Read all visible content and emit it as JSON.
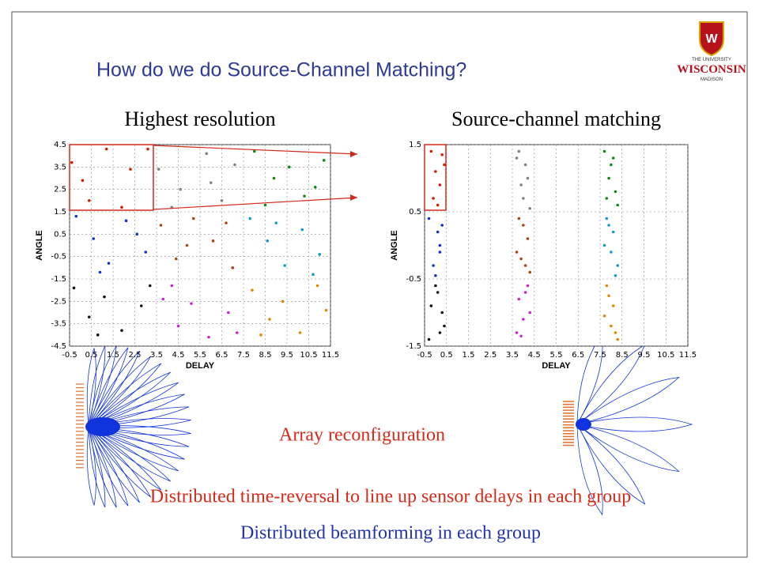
{
  "title": "How do we do Source-Channel Matching?",
  "logo": {
    "line1": "THE UNIVERSITY",
    "line2": "WISCONSIN",
    "line3": "MADISON"
  },
  "chart_data": [
    {
      "type": "scatter",
      "title": "Highest resolution",
      "xlabel": "DELAY",
      "ylabel": "ANGLE",
      "xlim": [
        -0.5,
        11.5
      ],
      "ylim": [
        -4.5,
        4.5
      ],
      "xticks": [
        -0.5,
        0.5,
        1.5,
        2.5,
        3.5,
        4.5,
        5.5,
        6.5,
        7.5,
        8.5,
        9.5,
        10.5,
        11.5
      ],
      "yticks": [
        -4.5,
        -3.5,
        -2.5,
        -1.5,
        -0.5,
        0.5,
        1.5,
        2.5,
        3.5,
        4.5
      ],
      "grid": true,
      "series": [
        {
          "color": "#cc2200",
          "x": [
            -0.4,
            0.1,
            1.2,
            2.3,
            3.1,
            0.4,
            1.9
          ],
          "y": [
            3.7,
            2.9,
            4.3,
            3.4,
            4.3,
            2.0,
            1.7
          ]
        },
        {
          "color": "#808080",
          "x": [
            3.6,
            4.6,
            5.8,
            6.5,
            7.1,
            4.2,
            6.0
          ],
          "y": [
            3.4,
            2.5,
            4.1,
            2.0,
            3.6,
            1.7,
            2.8
          ]
        },
        {
          "color": "#118811",
          "x": [
            8.0,
            8.9,
            9.6,
            10.3,
            11.2,
            8.5,
            10.8
          ],
          "y": [
            4.2,
            3.0,
            3.5,
            2.2,
            3.8,
            1.8,
            2.6
          ]
        },
        {
          "color": "#1133cc",
          "x": [
            -0.2,
            0.6,
            1.3,
            2.1,
            3.0,
            0.9,
            2.6
          ],
          "y": [
            1.3,
            0.3,
            -0.8,
            1.1,
            -0.3,
            -1.2,
            0.5
          ]
        },
        {
          "color": "#aa4411",
          "x": [
            3.7,
            4.4,
            5.2,
            6.1,
            7.0,
            4.9,
            6.7
          ],
          "y": [
            0.9,
            -0.6,
            1.2,
            0.2,
            -1.0,
            0.0,
            1.0
          ]
        },
        {
          "color": "#1199cc",
          "x": [
            7.8,
            8.6,
            9.4,
            10.2,
            11.0,
            9.0,
            10.7
          ],
          "y": [
            1.2,
            0.2,
            -0.9,
            0.7,
            -0.4,
            1.0,
            -1.3
          ]
        },
        {
          "color": "#111111",
          "x": [
            -0.3,
            0.4,
            1.1,
            1.9,
            2.8,
            0.8,
            3.2
          ],
          "y": [
            -1.9,
            -3.2,
            -2.3,
            -3.8,
            -2.7,
            -4.0,
            -1.8
          ]
        },
        {
          "color": "#cc22cc",
          "x": [
            3.8,
            4.5,
            5.1,
            5.9,
            6.8,
            4.2,
            7.2
          ],
          "y": [
            -2.4,
            -3.6,
            -2.6,
            -4.1,
            -3.0,
            -1.8,
            -3.9
          ]
        },
        {
          "color": "#dd8800",
          "x": [
            7.9,
            8.7,
            9.3,
            10.1,
            10.9,
            8.3,
            11.3
          ],
          "y": [
            -2.0,
            -3.3,
            -2.5,
            -3.9,
            -1.8,
            -4.0,
            -2.9
          ]
        }
      ]
    },
    {
      "type": "scatter",
      "title": "Source-channel matching",
      "xlabel": "DELAY",
      "ylabel": "ANGLE",
      "xlim": [
        -0.5,
        11.5
      ],
      "ylim": [
        -1.5,
        1.5
      ],
      "xticks": [
        -0.5,
        0.5,
        1.5,
        2.5,
        3.5,
        4.5,
        5.5,
        6.5,
        7.5,
        8.5,
        9.5,
        10.5,
        11.5
      ],
      "yticks": [
        -1.5,
        -0.5,
        0.5,
        1.5
      ],
      "grid": true,
      "series": [
        {
          "color": "#cc2200",
          "x": [
            -0.2,
            0.0,
            0.3,
            -0.1,
            0.2,
            0.1,
            0.4
          ],
          "y": [
            1.4,
            1.1,
            1.35,
            0.7,
            0.9,
            0.6,
            1.2
          ]
        },
        {
          "color": "#808080",
          "x": [
            3.8,
            4.1,
            3.9,
            4.2,
            4.0,
            3.7,
            4.3
          ],
          "y": [
            1.4,
            1.2,
            0.9,
            1.0,
            0.7,
            1.3,
            0.55
          ]
        },
        {
          "color": "#118811",
          "x": [
            7.7,
            8.0,
            8.2,
            7.9,
            8.3,
            7.8,
            8.1
          ],
          "y": [
            1.4,
            1.2,
            0.8,
            1.0,
            0.6,
            0.7,
            1.3
          ]
        },
        {
          "color": "#1133cc",
          "x": [
            -0.3,
            0.1,
            0.2,
            -0.1,
            0.3,
            0.0,
            0.2
          ],
          "y": [
            0.4,
            0.2,
            -0.1,
            -0.3,
            0.3,
            -0.45,
            0.0
          ]
        },
        {
          "color": "#aa4411",
          "x": [
            3.8,
            4.2,
            3.9,
            4.0,
            4.3,
            3.7,
            4.1
          ],
          "y": [
            0.4,
            0.1,
            -0.2,
            0.3,
            -0.4,
            -0.1,
            -0.3
          ]
        },
        {
          "color": "#1199cc",
          "x": [
            7.8,
            8.1,
            8.0,
            8.3,
            7.9,
            8.2,
            7.7
          ],
          "y": [
            0.4,
            0.2,
            -0.1,
            -0.3,
            0.3,
            -0.45,
            0.0
          ]
        },
        {
          "color": "#111111",
          "x": [
            -0.2,
            0.2,
            0.0,
            -0.3,
            0.3,
            0.1,
            0.4
          ],
          "y": [
            -0.9,
            -1.3,
            -0.6,
            -1.4,
            -1.0,
            -0.7,
            -1.2
          ]
        },
        {
          "color": "#cc22cc",
          "x": [
            3.8,
            4.0,
            4.2,
            3.9,
            4.3,
            3.7,
            4.1
          ],
          "y": [
            -0.8,
            -1.1,
            -0.6,
            -1.35,
            -1.0,
            -1.3,
            -0.7
          ]
        },
        {
          "color": "#dd8800",
          "x": [
            7.8,
            8.1,
            8.0,
            8.3,
            7.9,
            8.2,
            7.7
          ],
          "y": [
            -0.6,
            -0.9,
            -1.2,
            -1.4,
            -0.75,
            -1.3,
            -1.05
          ]
        }
      ]
    }
  ],
  "captions": {
    "reconfig": "Array reconfiguration",
    "timereversal": "Distributed time-reversal to line up sensor delays in each group",
    "beamforming": "Distributed beamforming in each group"
  }
}
